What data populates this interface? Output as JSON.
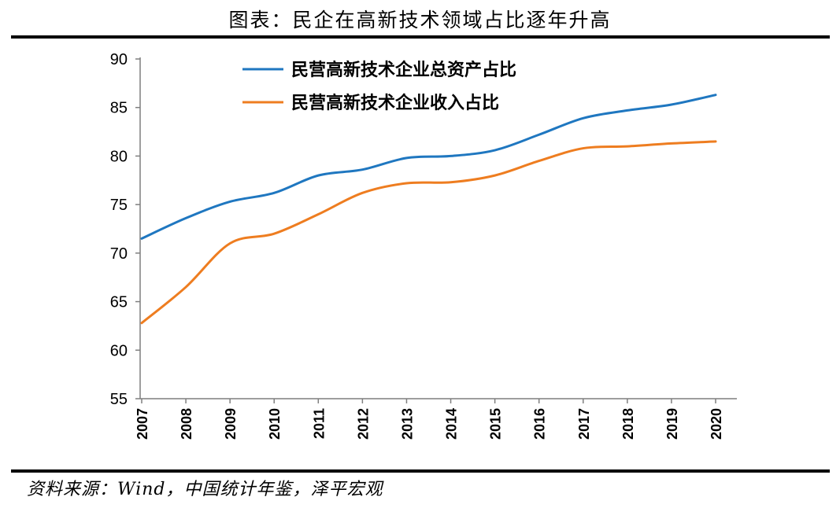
{
  "header": {
    "title": "图表：民企在高新技术领域占比逐年升高"
  },
  "footer": {
    "source": "资料来源：Wind，中国统计年鉴，泽平宏观"
  },
  "colors": {
    "series1": "#1f77c0",
    "series2": "#ee7d20"
  },
  "chart_data": {
    "type": "line",
    "x": [
      "2007",
      "2008",
      "2009",
      "2010",
      "2011",
      "2012",
      "2013",
      "2014",
      "2015",
      "2016",
      "2017",
      "2018",
      "2019",
      "2020"
    ],
    "series": [
      {
        "name": "民营高新技术企业总资产占比",
        "values": [
          71.5,
          73.6,
          75.3,
          76.2,
          78.0,
          78.6,
          79.8,
          80.0,
          80.6,
          82.2,
          83.9,
          84.7,
          85.3,
          86.3
        ]
      },
      {
        "name": "民营高新技术企业收入占比",
        "values": [
          62.8,
          66.5,
          71.0,
          72.0,
          74.0,
          76.2,
          77.2,
          77.3,
          78.0,
          79.5,
          80.8,
          81.0,
          81.3,
          81.5
        ]
      }
    ],
    "ylim": [
      55,
      90
    ],
    "yticks": [
      55,
      60,
      65,
      70,
      75,
      80,
      85,
      90
    ],
    "grid": false,
    "legend_position": "top-left"
  }
}
